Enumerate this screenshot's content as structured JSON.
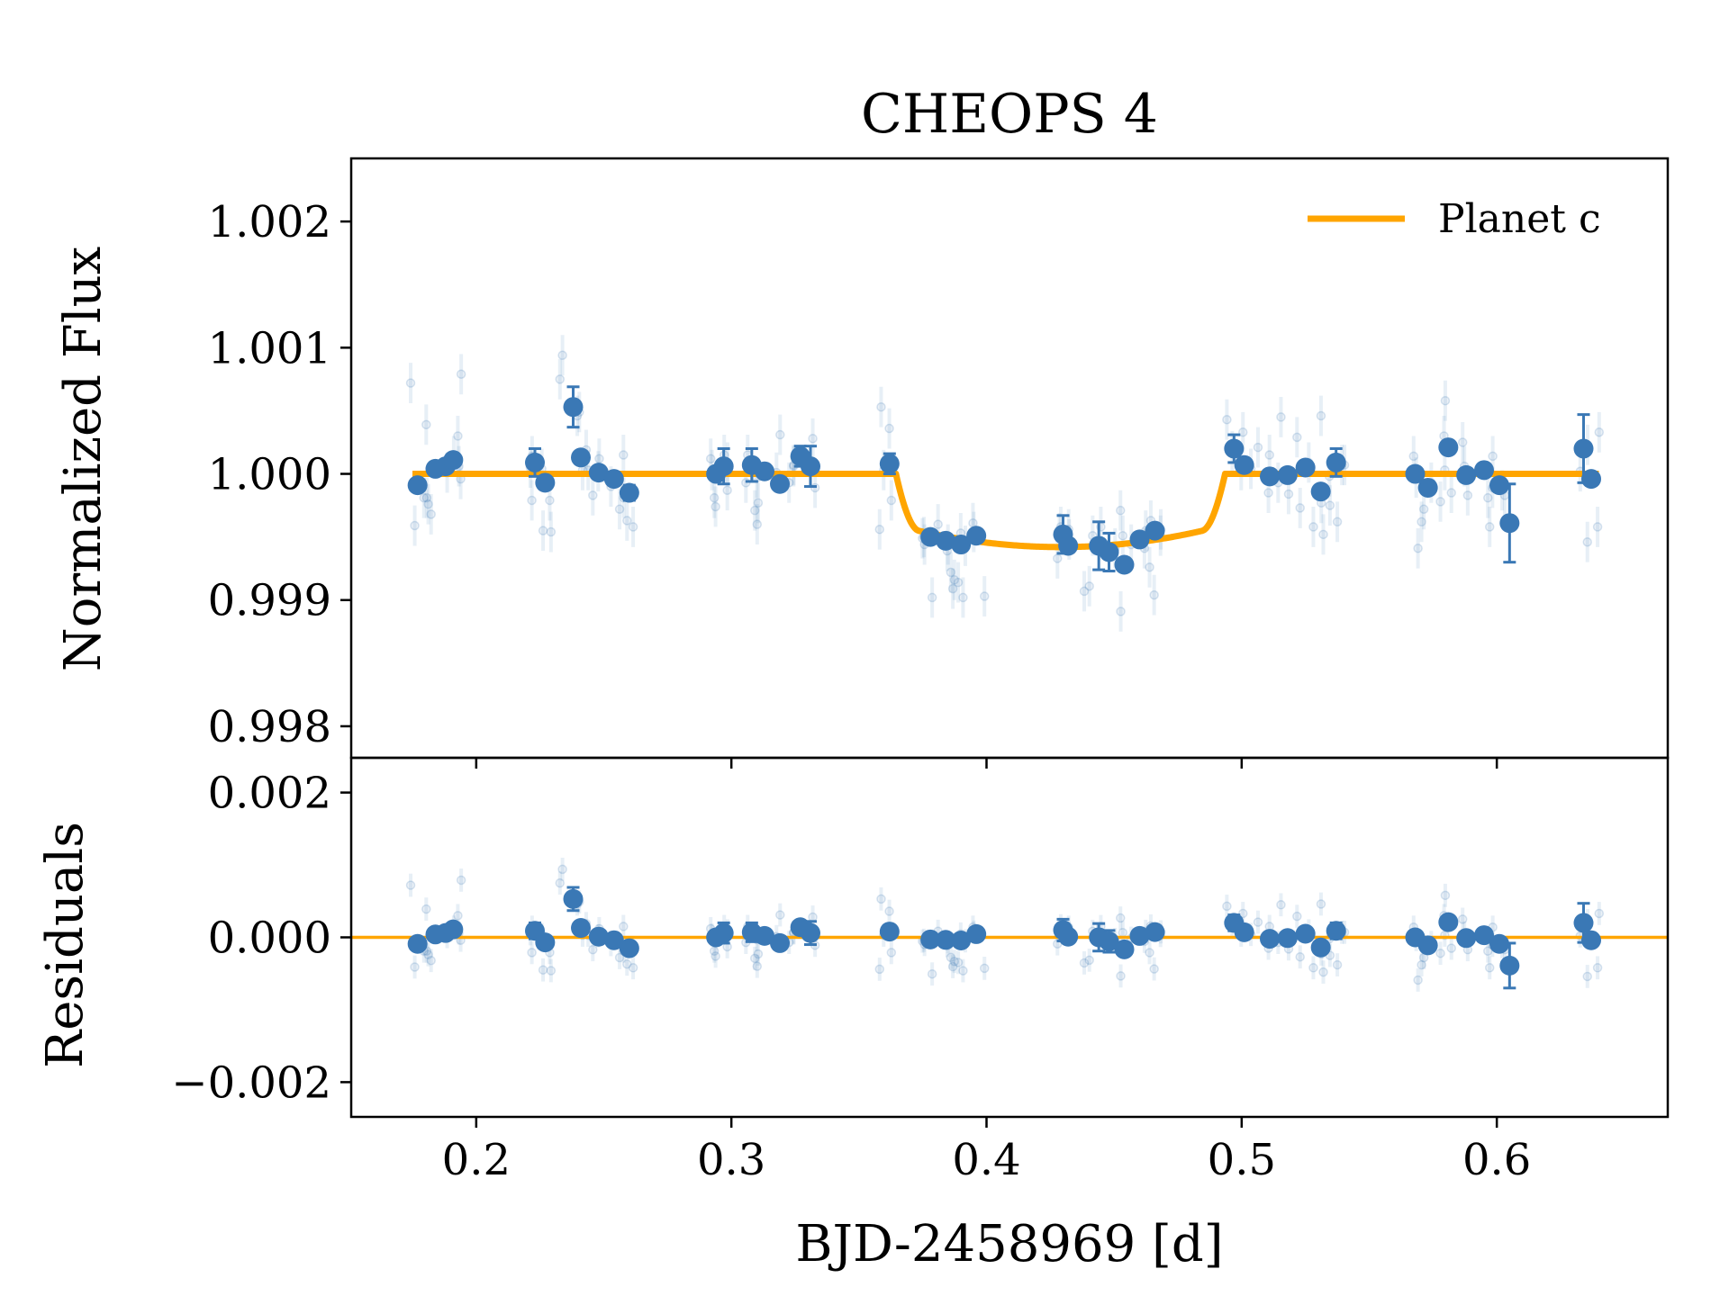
{
  "chart_data": {
    "type": "scatter",
    "title": "CHEOPS 4",
    "xlabel": "BJD-2458969 [d]",
    "xlim": [
      0.151,
      0.667
    ],
    "xticks": [
      0.2,
      0.3,
      0.4,
      0.5,
      0.6
    ],
    "xtick_labels": [
      "0.2",
      "0.3",
      "0.4",
      "0.5",
      "0.6"
    ],
    "colors": {
      "data": "#3a78b5",
      "model": "#ffa500",
      "axis": "#000000"
    },
    "panels": [
      {
        "name": "flux",
        "ylabel": "Normalized Flux",
        "ylim": [
          0.99775,
          1.0025
        ],
        "yticks": [
          0.998,
          0.999,
          1.0,
          1.001,
          1.002
        ],
        "ytick_labels": [
          "0.998",
          "0.999",
          "1.000",
          "1.001",
          "1.002"
        ],
        "legend": {
          "label": "Planet c",
          "position": "top-right"
        },
        "model": {
          "name": "Planet c",
          "baseline": 1.0,
          "depth": 0.00058,
          "t_start": 0.3645,
          "t_end": 0.4935,
          "ingress": 0.009,
          "x_range": [
            0.175,
            0.64
          ]
        },
        "binned": {
          "x": [
            0.177,
            0.184,
            0.188,
            0.191,
            0.223,
            0.227,
            0.238,
            0.241,
            0.248,
            0.254,
            0.26,
            0.294,
            0.297,
            0.308,
            0.313,
            0.319,
            0.327,
            0.331,
            0.362,
            0.378,
            0.384,
            0.39,
            0.396,
            0.43,
            0.432,
            0.444,
            0.448,
            0.454,
            0.46,
            0.466,
            0.497,
            0.501,
            0.511,
            0.518,
            0.525,
            0.531,
            0.537,
            0.568,
            0.573,
            0.581,
            0.588,
            0.595,
            0.601,
            0.605,
            0.634,
            0.637
          ],
          "y": [
            0.99991,
            1.00004,
            1.00006,
            1.00011,
            1.00009,
            0.99993,
            1.00053,
            1.00013,
            1.00001,
            0.99996,
            0.99985,
            1.0,
            1.00006,
            1.00007,
            1.00002,
            0.99992,
            1.00014,
            1.00006,
            1.00008,
            0.9995,
            0.99947,
            0.99944,
            0.99951,
            0.99952,
            0.99943,
            0.99943,
            0.99938,
            0.99928,
            0.99948,
            0.99955,
            1.0002,
            1.00007,
            0.99998,
            0.99999,
            1.00005,
            0.99986,
            1.00009,
            1.0,
            0.99989,
            1.00021,
            0.99999,
            1.00003,
            0.99991,
            0.99961,
            1.0002,
            0.99996
          ],
          "err": [
            4e-05,
            5e-05,
            4e-05,
            4e-05,
            0.00011,
            5e-05,
            0.00016,
            5e-05,
            5e-05,
            5e-05,
            6e-05,
            5e-05,
            0.00014,
            0.00013,
            5e-05,
            5e-05,
            8e-05,
            0.00016,
            8e-05,
            5e-05,
            5e-05,
            5e-05,
            5e-05,
            0.00015,
            5e-05,
            0.00019,
            0.00015,
            5e-05,
            5e-05,
            5e-05,
            0.00011,
            5e-05,
            5e-05,
            5e-05,
            5e-05,
            5e-05,
            0.00011,
            5e-05,
            5e-05,
            5e-05,
            5e-05,
            5e-05,
            5e-05,
            0.00031,
            0.00027,
            5e-05
          ]
        },
        "raw": {
          "x": [
            0.1743,
            0.1812,
            0.1886,
            0.1912,
            0.1823,
            0.1928,
            0.1941,
            0.1759,
            0.1795,
            0.1806,
            0.1939,
            0.1932,
            0.1804,
            0.2219,
            0.2212,
            0.2262,
            0.2218,
            0.2288,
            0.2293,
            0.2257,
            0.2338,
            0.2328,
            0.2417,
            0.2396,
            0.2404,
            0.2431,
            0.2478,
            0.2578,
            0.2482,
            0.2528,
            0.2615,
            0.2577,
            0.2591,
            0.2457,
            0.2439,
            0.2562,
            0.2919,
            0.2933,
            0.2924,
            0.2985,
            0.2984,
            0.2972,
            0.2938,
            0.3057,
            0.3064,
            0.31,
            0.3177,
            0.3105,
            0.3244,
            0.3101,
            0.3191,
            0.3092,
            0.3319,
            0.3226,
            0.3328,
            0.3244,
            0.3619,
            0.3597,
            0.3627,
            0.3587,
            0.3581,
            0.3757,
            0.381,
            0.3755,
            0.3787,
            0.3749,
            0.3899,
            0.3846,
            0.3908,
            0.3992,
            0.3874,
            0.3868,
            0.386,
            0.3889,
            0.3917,
            0.395,
            0.3947,
            0.3849,
            0.4291,
            0.4286,
            0.4322,
            0.4324,
            0.4278,
            0.4448,
            0.4567,
            0.4383,
            0.4403,
            0.4504,
            0.4525,
            0.4416,
            0.4526,
            0.4534,
            0.4619,
            0.4657,
            0.4624,
            0.4682,
            0.4683,
            0.4644,
            0.4639,
            0.4963,
            0.4942,
            0.5005,
            0.4998,
            0.5064,
            0.5105,
            0.5036,
            0.5154,
            0.5109,
            0.5184,
            0.5217,
            0.5143,
            0.5229,
            0.5344,
            0.5311,
            0.5312,
            0.5393,
            0.5263,
            0.532,
            0.5281,
            0.5346,
            0.5403,
            0.5375,
            0.5691,
            0.5684,
            0.5674,
            0.5793,
            0.5743,
            0.5714,
            0.5705,
            0.5822,
            0.5798,
            0.5796,
            0.5779,
            0.5886,
            0.5972,
            0.6021,
            0.5983,
            0.5873,
            0.6031,
            0.5984,
            0.5965,
            0.5866,
            0.6327,
            0.6401,
            0.6395,
            0.6356,
            0.6355
          ],
          "y": [
            1.00072,
            0.99976,
            1.00001,
            1.00014,
            0.99968,
            1.0003,
            1.00079,
            0.99959,
            0.99981,
            0.99981,
            0.99996,
            1.00006,
            1.00039,
            1.00014,
            1.00005,
            0.99955,
            0.99979,
            0.99979,
            0.99954,
            1.00004,
            1.00094,
            1.00075,
            1.00003,
            1.00046,
            1.00049,
            1.00019,
            1.00002,
            0.99981,
            1.00012,
            0.9999,
            0.99958,
            1.00015,
            0.99963,
            0.99983,
            1.00003,
            0.99972,
            1.00012,
            0.99981,
            1.00003,
            1.00009,
            0.99987,
            1.00015,
            0.99974,
            0.99993,
            1.00015,
            0.99997,
            1.00001,
            0.99977,
            1.00006,
            0.9996,
            1.00031,
            0.99971,
            1.00028,
            0.99993,
            0.99989,
            1.00007,
            1.00036,
            1.00003,
            0.99979,
            1.00053,
            0.99956,
            0.99944,
            0.9996,
            0.9995,
            0.99902,
            0.99949,
            0.99953,
            0.99939,
            0.99902,
            0.99903,
            0.99916,
            0.99909,
            0.99922,
            0.99914,
            0.99943,
            0.99954,
            0.99961,
            0.99944,
            0.99958,
            0.99953,
            0.99956,
            0.99948,
            0.99933,
            0.99958,
            0.99944,
            0.99907,
            0.99911,
            0.99941,
            0.99971,
            0.99951,
            0.99891,
            0.99951,
            0.99941,
            0.99904,
            0.99955,
            0.99951,
            0.99956,
            0.99963,
            0.99926,
            1.00018,
            1.00043,
            1.00033,
            1.00003,
            1.00021,
            0.99985,
            1.00004,
            1.00045,
            1.00015,
            0.99984,
            1.00029,
            0.99993,
            0.99973,
            0.99998,
            1.00046,
            0.99977,
            1.00007,
            1.00009,
            0.99952,
            0.99958,
            0.99975,
            1.00007,
            0.99962,
            0.99941,
            0.99997,
            1.00014,
            1.0003,
            0.99993,
            0.99972,
            0.99962,
            0.99985,
            1.00058,
            1.00003,
            0.99978,
            0.99983,
            0.99958,
            0.99987,
            0.99989,
            1.00006,
            0.99983,
            1.00014,
            0.99981,
            1.00025,
            1.00002,
            1.00033,
            0.99958,
            1.00023,
            0.99946
          ]
        }
      },
      {
        "name": "residuals",
        "ylabel": "Residuals",
        "ylim": [
          -0.00248,
          0.00248
        ],
        "yticks": [
          -0.002,
          0.0,
          0.002
        ],
        "ytick_labels": [
          "−0.002",
          "0.000",
          "0.002"
        ],
        "zero_line": 0.0
      }
    ]
  }
}
